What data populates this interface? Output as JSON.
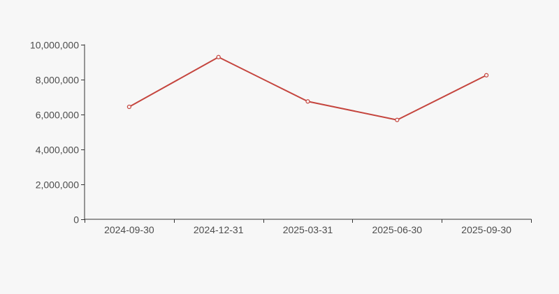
{
  "colors": {
    "background": "#f7f7f7",
    "line": "#c5453e",
    "marker_fill": "#f7f7f7",
    "axis": "#333333",
    "label": "#4d4d4d"
  },
  "chart_data": {
    "type": "line",
    "title": "",
    "xlabel": "",
    "ylabel": "",
    "categories": [
      "2024-09-30",
      "2024-12-31",
      "2025-03-31",
      "2025-06-30",
      "2025-09-30"
    ],
    "values": [
      6440000,
      9290000,
      6750000,
      5690000,
      8250000
    ],
    "ylim": [
      0,
      10000000
    ],
    "y_ticks": [
      {
        "value": 0,
        "label": "0"
      },
      {
        "value": 2000000,
        "label": "2,000,000"
      },
      {
        "value": 4000000,
        "label": "4,000,000"
      },
      {
        "value": 6000000,
        "label": "6,000,000"
      },
      {
        "value": 8000000,
        "label": "8,000,000"
      },
      {
        "value": 10000000,
        "label": "10,000,000"
      }
    ],
    "grid": false,
    "legend": false,
    "marker_style": "hollow-circle"
  }
}
